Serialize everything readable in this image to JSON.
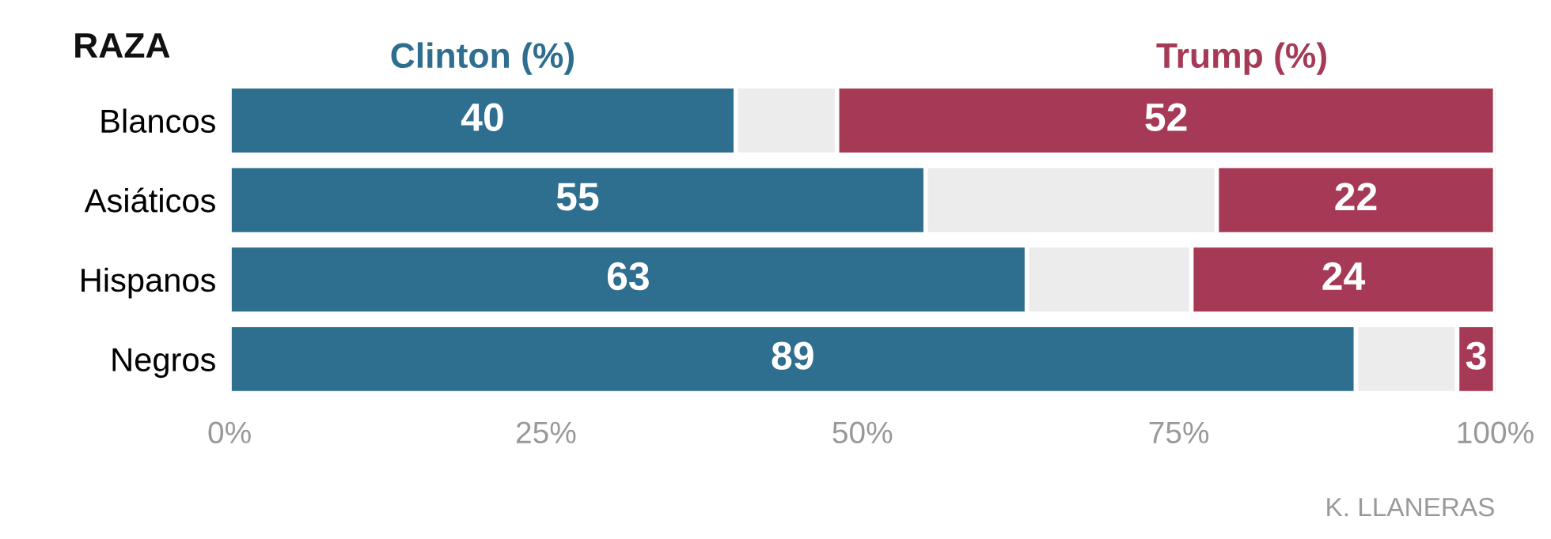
{
  "chart_data": {
    "type": "bar",
    "orientation": "horizontal",
    "stacked": true,
    "ylabel": "RAZA",
    "legend": "top",
    "categories": [
      "Blancos",
      "Asiáticos",
      "Hispanos",
      "Negros"
    ],
    "series": [
      {
        "name": "Clinton (%)",
        "color": "#2e6e8e",
        "values": [
          40,
          55,
          63,
          89
        ],
        "value_labels": [
          "40",
          "55",
          "63",
          "89"
        ]
      },
      {
        "color": "#ececec",
        "values": [
          8,
          23,
          13,
          8
        ]
      },
      {
        "name": "Trump (%)",
        "color": "#a63a56",
        "values": [
          52,
          22,
          24,
          3
        ],
        "value_labels": [
          "52",
          "22",
          "24",
          "3"
        ]
      }
    ],
    "xlim": [
      0,
      100
    ],
    "xticks": [
      {
        "value": 0,
        "label": "0%"
      },
      {
        "value": 25,
        "label": "25%"
      },
      {
        "value": 50,
        "label": "50%"
      },
      {
        "value": 75,
        "label": "75%"
      },
      {
        "value": 100,
        "label": "100%"
      }
    ],
    "grid": false,
    "annotations": [
      "K. LLANERAS"
    ]
  }
}
